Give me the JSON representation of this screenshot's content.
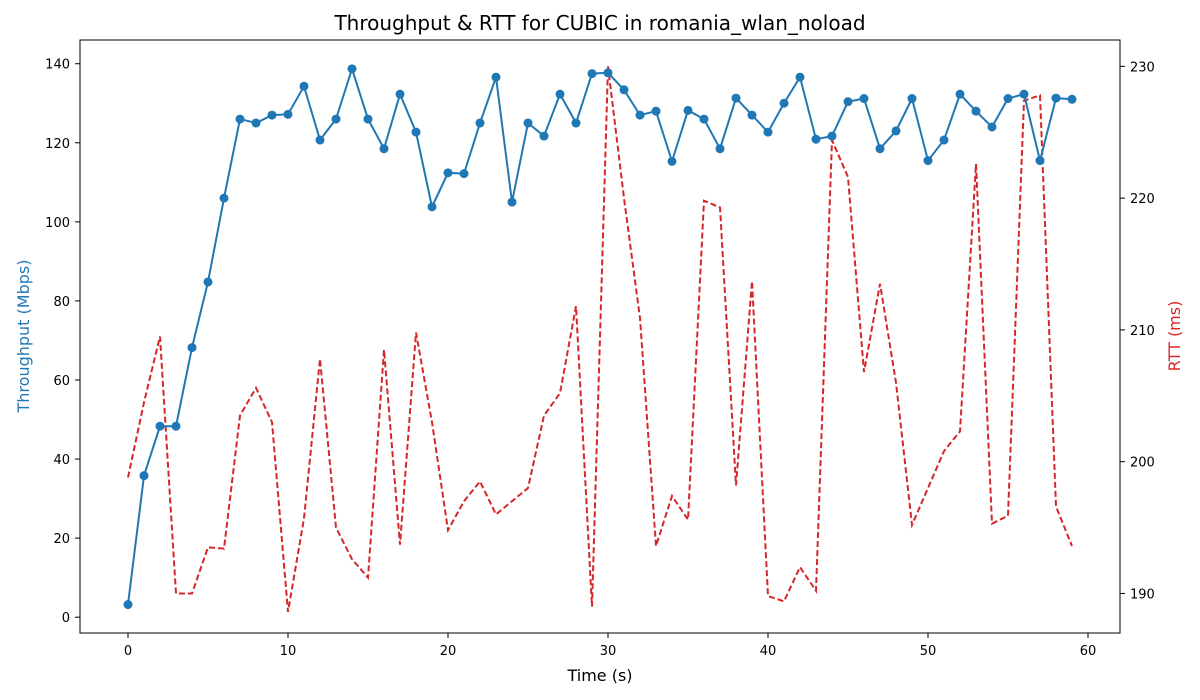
{
  "chart_data": {
    "type": "line",
    "title": "Throughput & RTT for CUBIC in romania_wlan_noload",
    "xlabel": "Time (s)",
    "ylabel_left": "Throughput (Mbps)",
    "ylabel_right": "RTT (ms)",
    "xlim": [
      -3,
      62
    ],
    "ylim_left": [
      -4,
      146
    ],
    "ylim_right": [
      187,
      232
    ],
    "x_ticks": [
      0,
      10,
      20,
      30,
      40,
      50,
      60
    ],
    "y_left_ticks": [
      0,
      20,
      40,
      60,
      80,
      100,
      120,
      140
    ],
    "y_right_ticks": [
      190,
      200,
      210,
      220,
      230
    ],
    "grid": false,
    "colors": {
      "throughput": "#1f77b4",
      "rtt": "#d62728",
      "axis_left_label": "#1f77b4",
      "axis_right_label": "#d62728"
    },
    "x": [
      0,
      1,
      2,
      3,
      4,
      5,
      6,
      7,
      8,
      9,
      10,
      11,
      12,
      13,
      14,
      15,
      16,
      17,
      18,
      19,
      20,
      21,
      22,
      23,
      24,
      25,
      26,
      27,
      28,
      29,
      30,
      31,
      32,
      33,
      34,
      35,
      36,
      37,
      38,
      39,
      40,
      41,
      42,
      43,
      44,
      45,
      46,
      47,
      48,
      49,
      50,
      51,
      52,
      53,
      54,
      55,
      56,
      57,
      58,
      59
    ],
    "series": [
      {
        "axis": "left",
        "style": "solid-markers",
        "values": [
          3.2,
          35.8,
          48.3,
          48.3,
          68.2,
          84.8,
          106.0,
          126.0,
          125.0,
          127.0,
          127.2,
          134.3,
          120.7,
          126.0,
          138.7,
          126.0,
          118.5,
          132.3,
          122.7,
          103.8,
          112.4,
          112.2,
          125.0,
          136.6,
          105.0,
          125.0,
          121.7,
          132.3,
          125.0,
          137.5,
          137.7,
          133.4,
          127.0,
          128.0,
          115.3,
          128.2,
          126.0,
          118.5,
          131.3,
          127.0,
          122.7,
          130.0,
          136.6,
          120.9,
          121.7,
          130.4,
          131.2,
          118.5,
          123.0,
          131.2,
          115.5,
          120.7,
          132.3,
          128.0,
          124.0,
          131.2,
          132.3,
          115.5,
          131.3,
          131.0
        ]
      },
      {
        "axis": "right",
        "style": "dashed",
        "values": [
          198.8,
          204.5,
          209.5,
          190.0,
          190.0,
          193.5,
          193.4,
          203.5,
          205.6,
          203.0,
          188.6,
          195.7,
          207.8,
          195.0,
          192.6,
          191.2,
          208.5,
          193.7,
          209.8,
          203.0,
          194.8,
          197.0,
          198.5,
          196.0,
          197.0,
          198.0,
          203.5,
          205.2,
          211.8,
          189.0,
          230.0,
          220.0,
          210.9,
          193.6,
          197.4,
          195.6,
          219.8,
          219.3,
          198.2,
          213.7,
          189.8,
          189.4,
          192.0,
          190.2,
          224.4,
          221.6,
          206.8,
          213.5,
          206.0,
          195.2,
          198.0,
          200.8,
          202.3,
          222.6,
          195.3,
          195.9,
          227.4,
          227.8,
          196.6,
          193.6
        ]
      }
    ]
  }
}
